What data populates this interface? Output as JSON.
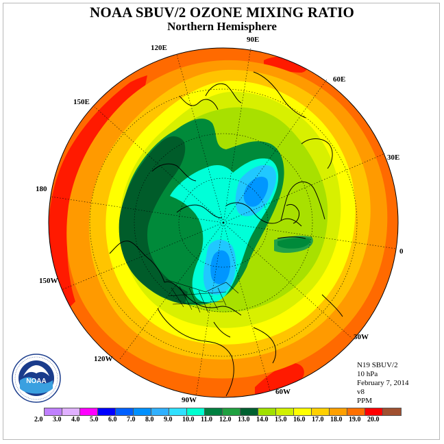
{
  "title": "NOAA SBUV/2 OZONE MIXING RATIO",
  "subtitle": "Northern Hemisphere",
  "longitude_labels": [
    "90E",
    "60E",
    "30E",
    "0",
    "30W",
    "60W",
    "90W",
    "120W",
    "150W",
    "180",
    "150E",
    "120E"
  ],
  "info": {
    "satellite": "N19 SBUV/2",
    "level": "10 hPa",
    "date": "February 7, 2014",
    "version": "v8",
    "units": "PPM"
  },
  "logo": {
    "text": "NOAA",
    "ring_text": "NATIONAL OCEANIC AND ATMOSPHERIC ADMINISTRATION · U.S. DEPARTMENT OF COMMERCE"
  },
  "colorbar": {
    "ticks": [
      "2.0",
      "3.0",
      "4.0",
      "5.0",
      "6.0",
      "7.0",
      "8.0",
      "9.0",
      "10.0",
      "11.0",
      "12.0",
      "13.0",
      "14.0",
      "15.0",
      "16.0",
      "17.0",
      "18.0",
      "19.0",
      "20.0"
    ],
    "colors": [
      "#c080ff",
      "#e0b0ff",
      "#ff00ff",
      "#0000ff",
      "#0060ff",
      "#0090ff",
      "#30b0ff",
      "#30e0ff",
      "#00ffd0",
      "#008040",
      "#20a040",
      "#006030",
      "#a0e000",
      "#d0f000",
      "#ffff00",
      "#ffd000",
      "#ffa000",
      "#ff7000",
      "#ff0000",
      "#a05030"
    ]
  },
  "colors": {
    "red": "#ff1a00",
    "orange_red": "#ff6a00",
    "orange": "#ff9a00",
    "amber": "#ffc400",
    "yellow": "#ffff00",
    "yellow_green": "#d8f000",
    "light_green": "#a8e000",
    "dark_green": "#005c2a",
    "green": "#008a3a",
    "mid_green": "#22a04a",
    "cyan": "#00ffd8",
    "light_blue": "#20c8ff",
    "blue": "#0096ff"
  }
}
